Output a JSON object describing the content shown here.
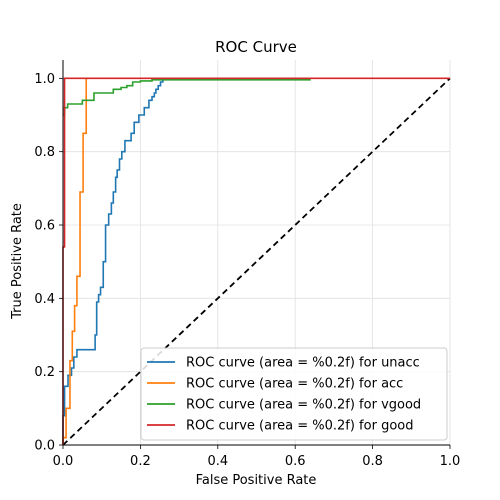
{
  "chart_data": {
    "type": "line",
    "title": "ROC Curve",
    "xlabel": "False Positive Rate",
    "ylabel": "True Positive Rate",
    "xlim": [
      0,
      1
    ],
    "ylim": [
      0,
      1.05
    ],
    "xticks": [
      "0.0",
      "0.2",
      "0.4",
      "0.6",
      "0.8",
      "1.0"
    ],
    "yticks": [
      "0.0",
      "0.2",
      "0.4",
      "0.6",
      "0.8",
      "1.0"
    ],
    "grid": true,
    "legend_position": "lower-right",
    "series": [
      {
        "name": "ROC curve (area = %0.2f) for unacc",
        "color": "#1f77b4",
        "x": [
          0.0,
          0.0,
          0.004,
          0.004,
          0.013,
          0.013,
          0.022,
          0.022,
          0.028,
          0.028,
          0.036,
          0.036,
          0.044,
          0.044,
          0.05,
          0.05,
          0.083,
          0.083,
          0.087,
          0.087,
          0.092,
          0.092,
          0.097,
          0.097,
          0.104,
          0.104,
          0.11,
          0.11,
          0.118,
          0.118,
          0.125,
          0.125,
          0.13,
          0.13,
          0.136,
          0.136,
          0.14,
          0.14,
          0.146,
          0.146,
          0.152,
          0.152,
          0.16,
          0.16,
          0.168,
          0.168,
          0.176,
          0.176,
          0.184,
          0.184,
          0.196,
          0.196,
          0.21,
          0.21,
          0.222,
          0.222,
          0.23,
          0.23,
          0.236,
          0.236,
          0.24,
          0.24,
          0.246,
          0.246,
          0.252,
          0.252,
          0.258,
          0.258,
          0.264,
          0.264,
          0.64
        ],
        "y": [
          0.0,
          0.08,
          0.08,
          0.16,
          0.16,
          0.19,
          0.19,
          0.21,
          0.21,
          0.24,
          0.24,
          0.26,
          0.26,
          0.26,
          0.26,
          0.26,
          0.26,
          0.3,
          0.3,
          0.39,
          0.39,
          0.41,
          0.41,
          0.43,
          0.43,
          0.5,
          0.5,
          0.6,
          0.6,
          0.63,
          0.63,
          0.66,
          0.66,
          0.69,
          0.69,
          0.73,
          0.73,
          0.75,
          0.75,
          0.78,
          0.78,
          0.8,
          0.8,
          0.83,
          0.83,
          0.83,
          0.83,
          0.85,
          0.85,
          0.88,
          0.88,
          0.9,
          0.9,
          0.92,
          0.92,
          0.94,
          0.94,
          0.95,
          0.95,
          0.96,
          0.96,
          0.97,
          0.97,
          0.98,
          0.98,
          0.99,
          0.99,
          1.0,
          1.0,
          1.0,
          1.0
        ]
      },
      {
        "name": "ROC curve (area = %0.2f) for acc",
        "color": "#ff7f0e",
        "x": [
          0.0,
          0.0,
          0.008,
          0.008,
          0.018,
          0.018,
          0.024,
          0.024,
          0.03,
          0.03,
          0.036,
          0.036,
          0.044,
          0.044,
          0.052,
          0.052,
          0.06,
          0.06
        ],
        "y": [
          0.0,
          0.02,
          0.02,
          0.1,
          0.1,
          0.23,
          0.23,
          0.31,
          0.31,
          0.38,
          0.38,
          0.46,
          0.46,
          0.69,
          0.69,
          0.85,
          0.85,
          1.0
        ]
      },
      {
        "name": "ROC curve (area = %0.2f) for vgood",
        "color": "#2ca02c",
        "x": [
          0.0,
          0.004,
          0.004,
          0.012,
          0.012,
          0.05,
          0.05,
          0.08,
          0.08,
          0.13,
          0.13,
          0.15,
          0.15,
          0.165,
          0.165,
          0.18,
          0.18,
          0.2,
          0.2,
          0.23,
          0.23,
          0.64
        ],
        "y": [
          0.9,
          0.9,
          0.92,
          0.92,
          0.93,
          0.93,
          0.94,
          0.94,
          0.96,
          0.96,
          0.97,
          0.97,
          0.975,
          0.975,
          0.98,
          0.98,
          0.99,
          0.99,
          0.993,
          0.993,
          0.996,
          0.996
        ]
      },
      {
        "name": "ROC curve (area = %0.2f) for good",
        "color": "#d62728",
        "x": [
          0.0,
          0.0,
          0.004,
          0.004,
          1.0
        ],
        "y": [
          0.0,
          0.54,
          0.54,
          1.0,
          1.0
        ]
      }
    ],
    "reference_line": {
      "x": [
        0,
        1
      ],
      "y": [
        0,
        1
      ],
      "color": "#000000",
      "style": "dashed"
    }
  }
}
